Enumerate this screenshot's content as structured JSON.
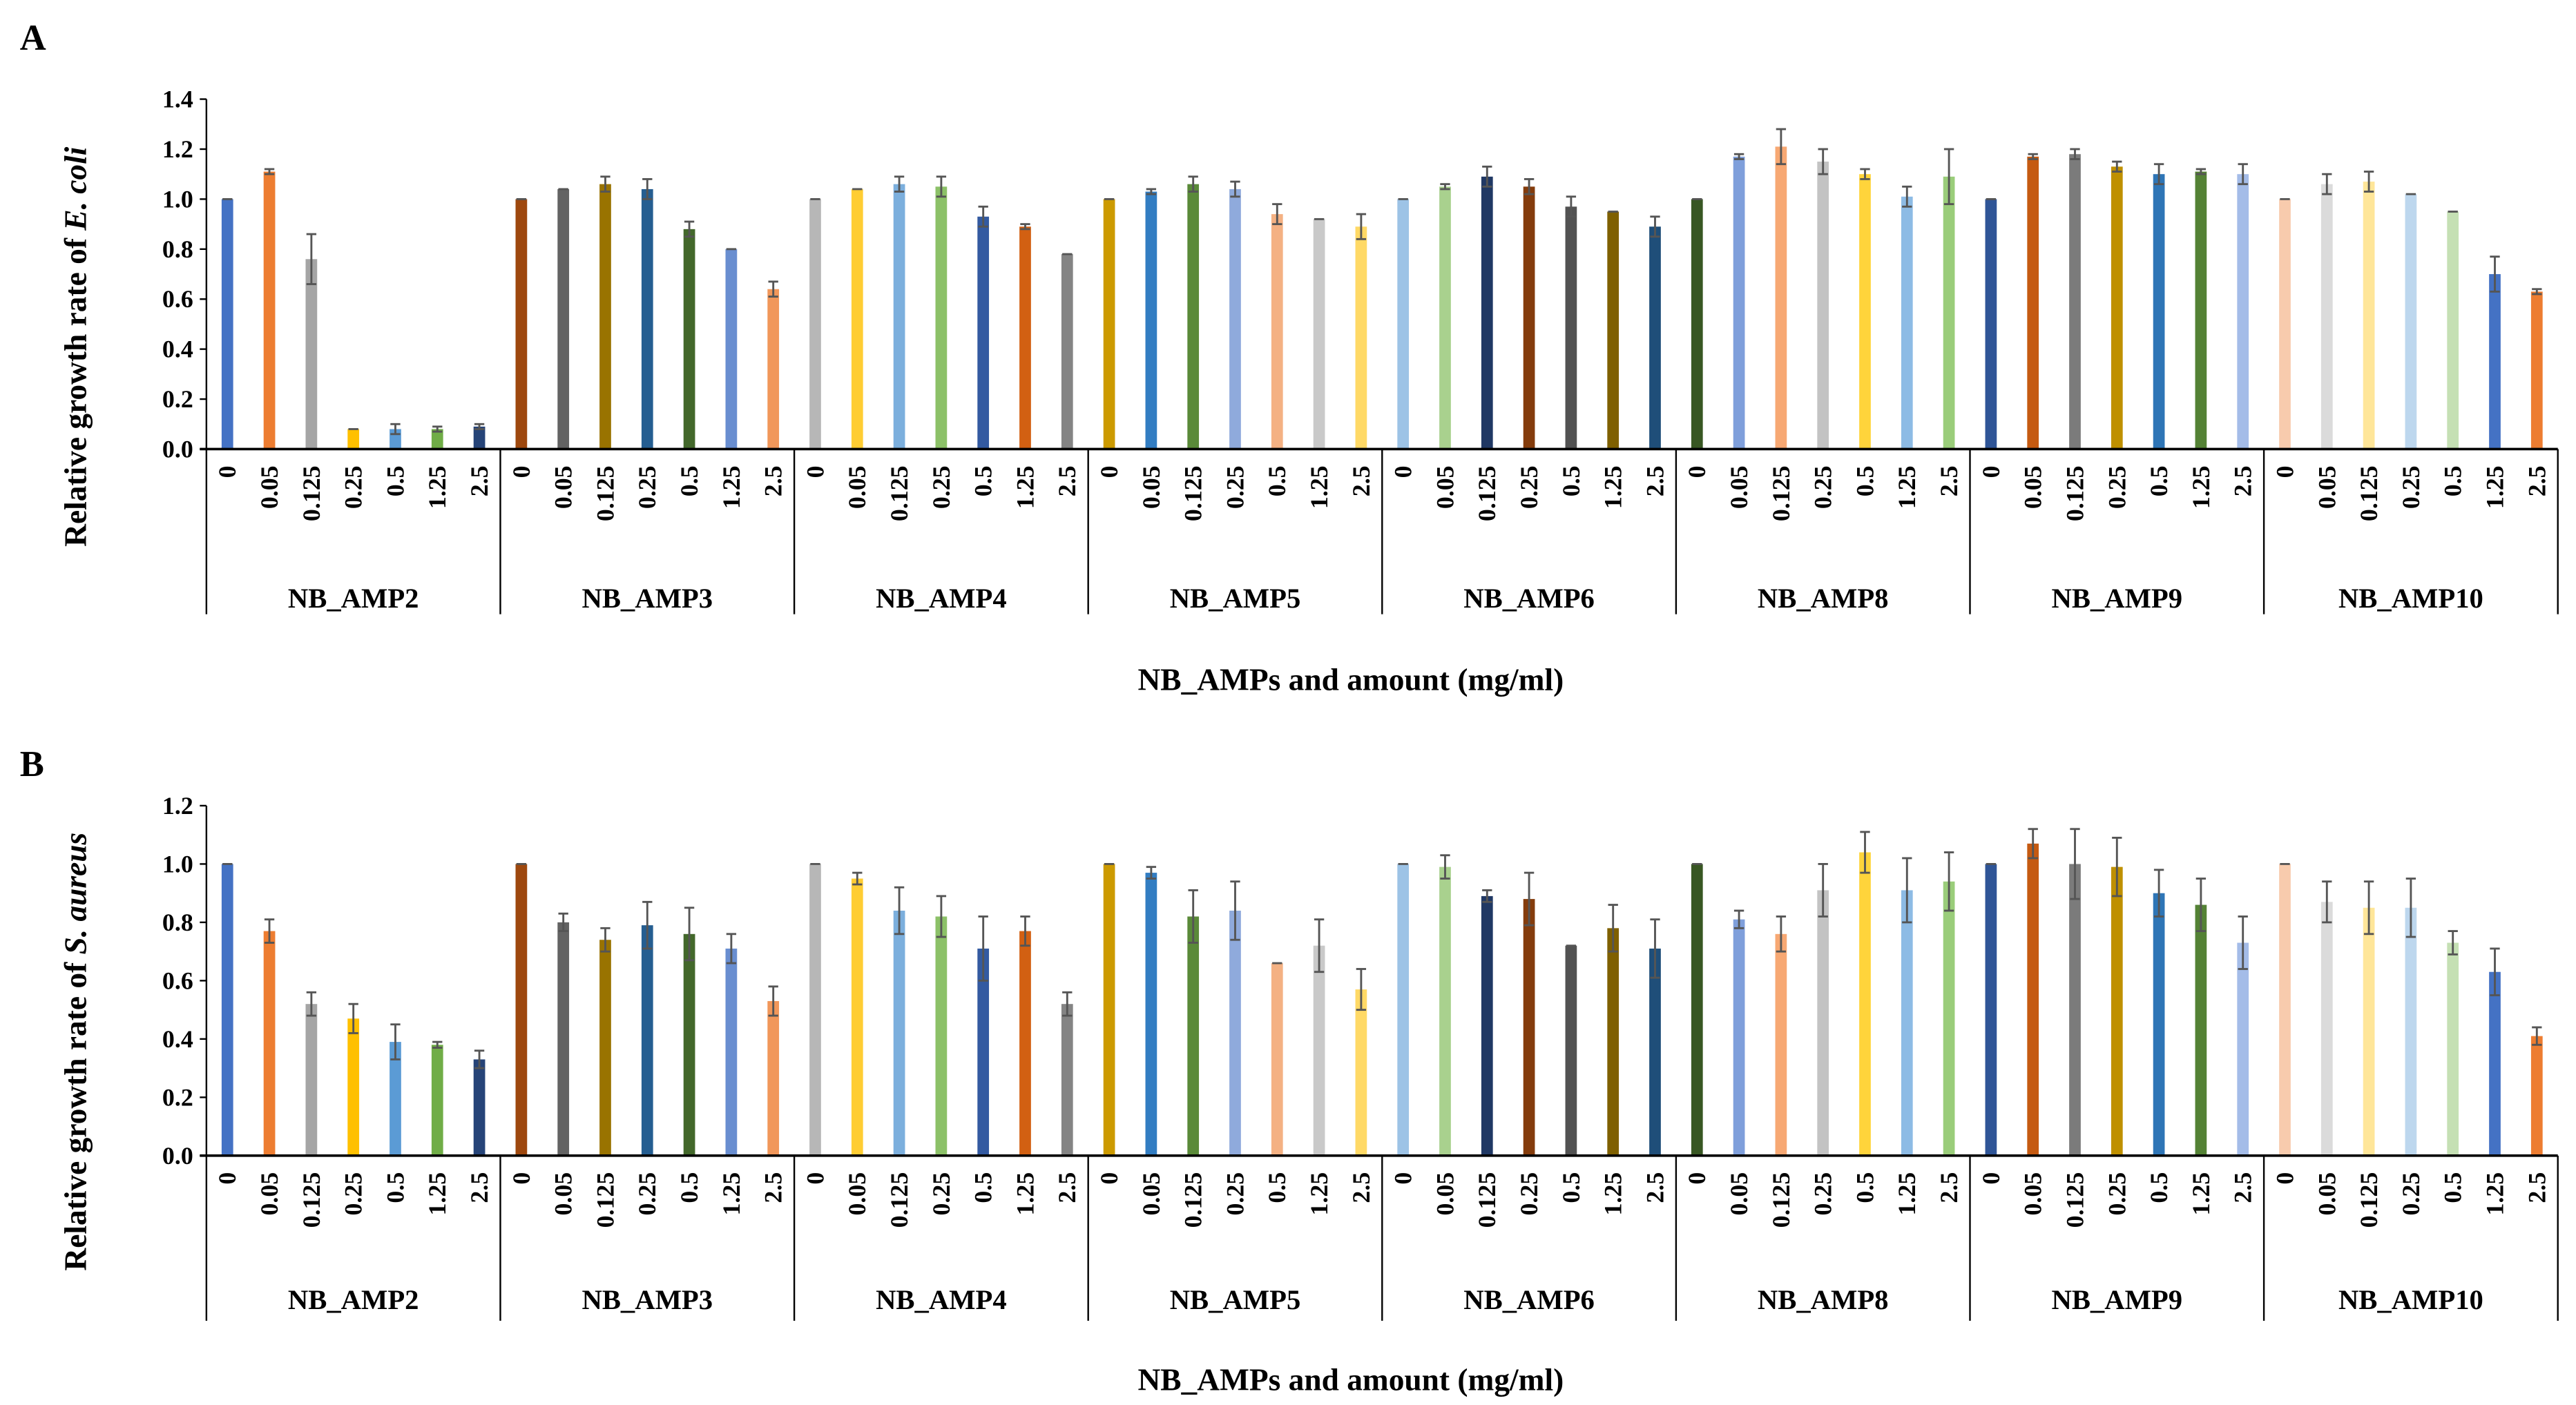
{
  "colors": [
    "#4472C4",
    "#ED7D31",
    "#A5A5A5",
    "#FFC000",
    "#5B9BD5",
    "#70AD47",
    "#264478",
    "#9E480E",
    "#636363",
    "#997300",
    "#255E91",
    "#43682B",
    "#698ED0",
    "#F1975A",
    "#B7B7B7",
    "#FFCD33",
    "#7CAFDD",
    "#8CC168",
    "#335AA1",
    "#D26012",
    "#848484",
    "#CC9A00",
    "#327DC2",
    "#5A8A39",
    "#8FAADC",
    "#F4B183",
    "#C9C9C9",
    "#FFD966",
    "#9DC3E6",
    "#A9D18E",
    "#203864",
    "#843C0C",
    "#525252",
    "#7F6000",
    "#1F4E79",
    "#385723",
    "#7F9FDB",
    "#F7A873",
    "#C3C3C3",
    "#FFD43B",
    "#8DBBE5",
    "#9ACD7A",
    "#2F5597",
    "#C55A11",
    "#7B7B7B",
    "#BF9000",
    "#2E75B6",
    "#548235",
    "#A4BCE8",
    "#F8CBAD",
    "#DBDBDB",
    "#FFE699",
    "#BDD7EE",
    "#C5E0B4",
    "#4472C4",
    "#ED7D31"
  ],
  "chart_data": [
    {
      "panel_label": "A",
      "type": "bar",
      "ylabel_prefix": "Relative growth rate of ",
      "ylabel_italic": "E. coli",
      "xlabel": "NB_AMPs and amount (mg/ml)",
      "ylim": [
        0,
        1.4
      ],
      "yticks": [
        "0.0",
        "0.2",
        "0.4",
        "0.6",
        "0.8",
        "1.0",
        "1.2",
        "1.4"
      ],
      "concentrations": [
        "0",
        "0.05",
        "0.125",
        "0.25",
        "0.5",
        "1.25",
        "2.5"
      ],
      "groups": [
        {
          "name": "NB_AMP2",
          "values": [
            1.0,
            1.11,
            0.76,
            0.08,
            0.08,
            0.08,
            0.09
          ],
          "errors": [
            0.005,
            0.01,
            0.1,
            0.005,
            0.02,
            0.01,
            0.01
          ]
        },
        {
          "name": "NB_AMP3",
          "values": [
            1.0,
            1.04,
            1.06,
            1.04,
            0.88,
            0.8,
            0.64
          ],
          "errors": [
            0.005,
            0.005,
            0.03,
            0.04,
            0.03,
            0.005,
            0.03
          ]
        },
        {
          "name": "NB_AMP4",
          "values": [
            1.0,
            1.04,
            1.06,
            1.05,
            0.93,
            0.89,
            0.78
          ],
          "errors": [
            0.005,
            0.005,
            0.03,
            0.04,
            0.04,
            0.01,
            0.005
          ]
        },
        {
          "name": "NB_AMP5",
          "values": [
            1.0,
            1.03,
            1.06,
            1.04,
            0.94,
            0.92,
            0.89
          ],
          "errors": [
            0.005,
            0.01,
            0.03,
            0.03,
            0.04,
            0.005,
            0.05
          ]
        },
        {
          "name": "NB_AMP6",
          "values": [
            1.0,
            1.05,
            1.09,
            1.05,
            0.97,
            0.95,
            0.89
          ],
          "errors": [
            0.005,
            0.01,
            0.04,
            0.03,
            0.04,
            0.005,
            0.04
          ]
        },
        {
          "name": "NB_AMP8",
          "values": [
            1.0,
            1.17,
            1.21,
            1.15,
            1.1,
            1.01,
            1.09
          ],
          "errors": [
            0.005,
            0.01,
            0.07,
            0.05,
            0.02,
            0.04,
            0.11
          ]
        },
        {
          "name": "NB_AMP9",
          "values": [
            1.0,
            1.17,
            1.18,
            1.13,
            1.1,
            1.11,
            1.1
          ],
          "errors": [
            0.005,
            0.01,
            0.02,
            0.02,
            0.04,
            0.01,
            0.04
          ]
        },
        {
          "name": "NB_AMP10",
          "values": [
            1.0,
            1.06,
            1.07,
            1.02,
            0.95,
            0.7,
            0.63
          ],
          "errors": [
            0.005,
            0.04,
            0.04,
            0.005,
            0.005,
            0.07,
            0.01
          ]
        }
      ]
    },
    {
      "panel_label": "B",
      "type": "bar",
      "ylabel_prefix": "Relative growth rate of ",
      "ylabel_italic": "S. aureus",
      "xlabel": "NB_AMPs and amount (mg/ml)",
      "ylim": [
        0,
        1.2
      ],
      "yticks": [
        "0.0",
        "0.2",
        "0.4",
        "0.6",
        "0.8",
        "1.0",
        "1.2"
      ],
      "concentrations": [
        "0",
        "0.05",
        "0.125",
        "0.25",
        "0.5",
        "1.25",
        "2.5"
      ],
      "groups": [
        {
          "name": "NB_AMP2",
          "values": [
            1.0,
            0.77,
            0.52,
            0.47,
            0.39,
            0.38,
            0.33
          ],
          "errors": [
            0.005,
            0.04,
            0.04,
            0.05,
            0.06,
            0.01,
            0.03
          ]
        },
        {
          "name": "NB_AMP3",
          "values": [
            1.0,
            0.8,
            0.74,
            0.79,
            0.76,
            0.71,
            0.53
          ],
          "errors": [
            0.005,
            0.03,
            0.04,
            0.08,
            0.09,
            0.05,
            0.05
          ]
        },
        {
          "name": "NB_AMP4",
          "values": [
            1.0,
            0.95,
            0.84,
            0.82,
            0.71,
            0.77,
            0.52
          ],
          "errors": [
            0.005,
            0.02,
            0.08,
            0.07,
            0.11,
            0.05,
            0.04
          ]
        },
        {
          "name": "NB_AMP5",
          "values": [
            1.0,
            0.97,
            0.82,
            0.84,
            0.66,
            0.72,
            0.57
          ],
          "errors": [
            0.005,
            0.02,
            0.09,
            0.1,
            0.005,
            0.09,
            0.07
          ]
        },
        {
          "name": "NB_AMP6",
          "values": [
            1.0,
            0.99,
            0.89,
            0.88,
            0.72,
            0.78,
            0.71
          ],
          "errors": [
            0.005,
            0.04,
            0.02,
            0.09,
            0.005,
            0.08,
            0.1
          ]
        },
        {
          "name": "NB_AMP8",
          "values": [
            1.0,
            0.81,
            0.76,
            0.91,
            1.04,
            0.91,
            0.94
          ],
          "errors": [
            0.005,
            0.03,
            0.06,
            0.09,
            0.07,
            0.11,
            0.1
          ]
        },
        {
          "name": "NB_AMP9",
          "values": [
            1.0,
            1.07,
            1.0,
            0.99,
            0.9,
            0.86,
            0.73
          ],
          "errors": [
            0.005,
            0.05,
            0.12,
            0.1,
            0.08,
            0.09,
            0.09
          ]
        },
        {
          "name": "NB_AMP10",
          "values": [
            1.0,
            0.87,
            0.85,
            0.85,
            0.73,
            0.63,
            0.41
          ],
          "errors": [
            0.005,
            0.07,
            0.09,
            0.1,
            0.04,
            0.08,
            0.03
          ]
        }
      ]
    }
  ]
}
